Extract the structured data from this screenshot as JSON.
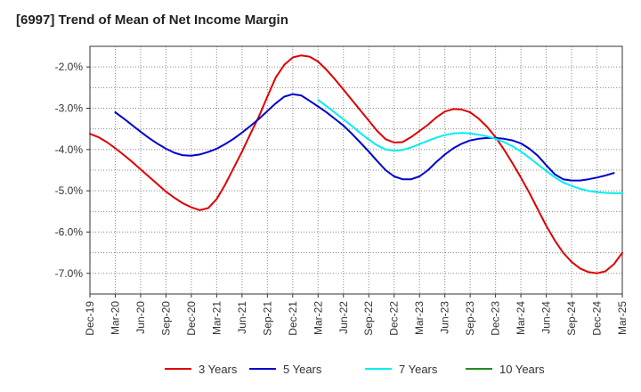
{
  "chart_data": {
    "type": "line",
    "title": "[6997]  Trend of Mean of Net Income Margin",
    "xlabel": "",
    "ylabel": "",
    "ylim": [
      -7.5,
      -1.5
    ],
    "y_ticks": [
      -2.0,
      -3.0,
      -4.0,
      -5.0,
      -6.0,
      -7.0
    ],
    "y_tick_labels": [
      "-2.0%",
      "-3.0%",
      "-4.0%",
      "-5.0%",
      "-6.0%",
      "-7.0%"
    ],
    "x_tick_labels": [
      "Dec-19",
      "Mar-20",
      "Jun-20",
      "Sep-20",
      "Dec-20",
      "Mar-21",
      "Jun-21",
      "Sep-21",
      "Dec-21",
      "Mar-22",
      "Jun-22",
      "Sep-22",
      "Dec-22",
      "Mar-23",
      "Jun-23",
      "Sep-23",
      "Dec-23",
      "Mar-24",
      "Jun-24",
      "Sep-24",
      "Dec-24",
      "Mar-25"
    ],
    "grid": true,
    "legend_position": "bottom",
    "series": [
      {
        "name": "3 Years",
        "color": "#dd0000",
        "start_index": 0,
        "values": [
          -3.62,
          -3.7,
          -3.82,
          -3.97,
          -4.13,
          -4.3,
          -4.48,
          -4.66,
          -4.84,
          -5.02,
          -5.17,
          -5.3,
          -5.4,
          -5.47,
          -5.42,
          -5.2,
          -4.85,
          -4.45,
          -4.05,
          -3.62,
          -3.2,
          -2.72,
          -2.25,
          -1.95,
          -1.77,
          -1.72,
          -1.75,
          -1.87,
          -2.07,
          -2.3,
          -2.55,
          -2.8,
          -3.05,
          -3.3,
          -3.55,
          -3.75,
          -3.83,
          -3.82,
          -3.7,
          -3.55,
          -3.4,
          -3.22,
          -3.08,
          -3.02,
          -3.03,
          -3.1,
          -3.25,
          -3.45,
          -3.7,
          -4.0,
          -4.33,
          -4.68,
          -5.05,
          -5.45,
          -5.85,
          -6.2,
          -6.5,
          -6.72,
          -6.88,
          -6.97,
          -7.0,
          -6.95,
          -6.78,
          -6.5
        ]
      },
      {
        "name": "5 Years",
        "color": "#0000cc",
        "start_index": 3,
        "values": [
          -3.1,
          -3.25,
          -3.41,
          -3.57,
          -3.72,
          -3.86,
          -3.98,
          -4.08,
          -4.14,
          -4.15,
          -4.12,
          -4.06,
          -3.98,
          -3.87,
          -3.74,
          -3.59,
          -3.43,
          -3.26,
          -3.07,
          -2.88,
          -2.72,
          -2.66,
          -2.69,
          -2.82,
          -2.96,
          -3.1,
          -3.26,
          -3.42,
          -3.62,
          -3.83,
          -4.05,
          -4.28,
          -4.5,
          -4.65,
          -4.72,
          -4.72,
          -4.65,
          -4.5,
          -4.3,
          -4.12,
          -3.97,
          -3.86,
          -3.78,
          -3.74,
          -3.72,
          -3.72,
          -3.74,
          -3.78,
          -3.85,
          -3.98,
          -4.15,
          -4.38,
          -4.6,
          -4.72,
          -4.75,
          -4.75,
          -4.72,
          -4.68,
          -4.63,
          -4.57
        ]
      },
      {
        "name": "7 Years",
        "color": "#00eeee",
        "start_index": 27,
        "values": [
          -2.8,
          -2.95,
          -3.11,
          -3.27,
          -3.43,
          -3.6,
          -3.76,
          -3.9,
          -4.0,
          -4.03,
          -4.01,
          -3.95,
          -3.87,
          -3.79,
          -3.71,
          -3.65,
          -3.61,
          -3.6,
          -3.61,
          -3.64,
          -3.68,
          -3.74,
          -3.82,
          -3.92,
          -4.05,
          -4.2,
          -4.36,
          -4.52,
          -4.67,
          -4.8,
          -4.88,
          -4.95,
          -5.0,
          -5.03,
          -5.05,
          -5.06,
          -5.06
        ]
      },
      {
        "name": "10 Years",
        "color": "#228b22",
        "start_index": 0,
        "values": []
      }
    ]
  }
}
